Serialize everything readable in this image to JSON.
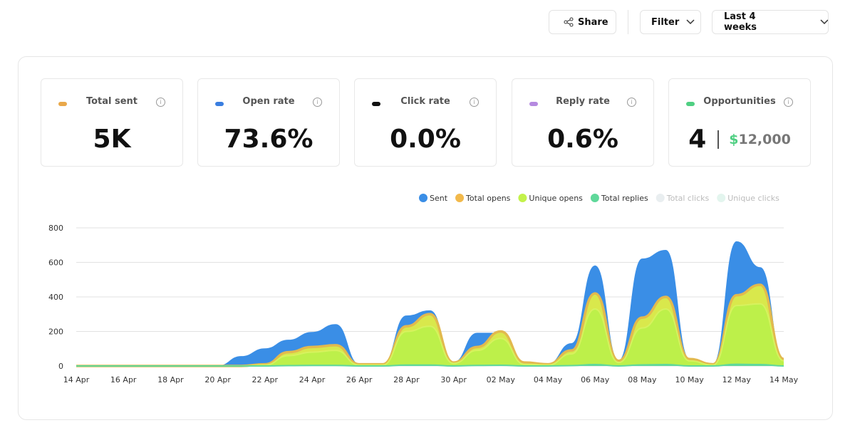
{
  "toolbar": {
    "share": "Share",
    "filter": "Filter",
    "range": "Last 4 weeks"
  },
  "stats": [
    {
      "label": "Total sent",
      "value": "5K",
      "color": "#e9a84a"
    },
    {
      "label": "Open rate",
      "value": "73.6%",
      "color": "#3a7ee0"
    },
    {
      "label": "Click rate",
      "value": "0.0%",
      "color": "#111111"
    },
    {
      "label": "Reply rate",
      "value": "0.6%",
      "color": "#b58ae0"
    },
    {
      "label": "Opportunities",
      "value": "4",
      "currency": "$",
      "amount": "12,000",
      "color": "#4fcf82"
    }
  ],
  "chart_data": {
    "type": "area",
    "categories": [
      "14 Apr",
      null,
      "16 Apr",
      null,
      "18 Apr",
      null,
      "20 Apr",
      null,
      "22 Apr",
      null,
      "24 Apr",
      null,
      "26 Apr",
      null,
      "28 Apr",
      null,
      "30 Apr",
      null,
      "02 May",
      null,
      "04 May",
      null,
      "06 May",
      null,
      "08 May",
      null,
      "10 May",
      null,
      "12 May",
      null,
      "14 May"
    ],
    "series": [
      {
        "name": "Sent",
        "color": "#3a8ee6",
        "values": [
          0,
          0,
          0,
          0,
          0,
          0,
          0,
          55,
          100,
          150,
          195,
          240,
          10,
          10,
          290,
          320,
          20,
          190,
          190,
          20,
          10,
          130,
          580,
          30,
          620,
          670,
          40,
          10,
          720,
          570,
          30
        ]
      },
      {
        "name": "Total opens",
        "color": "#f2b94b",
        "values": [
          0,
          0,
          0,
          0,
          0,
          0,
          0,
          0,
          10,
          80,
          110,
          120,
          10,
          10,
          230,
          300,
          20,
          110,
          200,
          20,
          10,
          90,
          420,
          30,
          280,
          400,
          40,
          10,
          410,
          470,
          40
        ]
      },
      {
        "name": "Unique opens",
        "color": "#c3f24b",
        "values": [
          0,
          0,
          0,
          0,
          0,
          0,
          0,
          0,
          5,
          60,
          80,
          90,
          5,
          5,
          200,
          230,
          15,
          90,
          160,
          10,
          5,
          70,
          330,
          20,
          220,
          330,
          30,
          5,
          350,
          360,
          30
        ]
      },
      {
        "name": "Total replies",
        "color": "#5fd89a",
        "values": [
          0,
          0,
          0,
          0,
          0,
          0,
          0,
          0,
          0,
          2,
          3,
          3,
          0,
          0,
          5,
          5,
          0,
          3,
          4,
          0,
          0,
          2,
          8,
          0,
          6,
          8,
          0,
          0,
          10,
          8,
          0
        ]
      },
      {
        "name": "Total clicks",
        "color": "#e9eef0",
        "hidden": true,
        "values": [
          0,
          0,
          0,
          0,
          0,
          0,
          0,
          0,
          0,
          0,
          0,
          0,
          0,
          0,
          0,
          0,
          0,
          0,
          0,
          0,
          0,
          0,
          0,
          0,
          0,
          0,
          0,
          0,
          0,
          0,
          0
        ]
      },
      {
        "name": "Unique clicks",
        "color": "#e3f5ee",
        "hidden": true,
        "values": [
          0,
          0,
          0,
          0,
          0,
          0,
          0,
          0,
          0,
          0,
          0,
          0,
          0,
          0,
          0,
          0,
          0,
          0,
          0,
          0,
          0,
          0,
          0,
          0,
          0,
          0,
          0,
          0,
          0,
          0,
          0
        ]
      }
    ],
    "ylim": [
      0,
      800
    ],
    "yticks": [
      0,
      200,
      400,
      600,
      800
    ],
    "grid": true
  }
}
